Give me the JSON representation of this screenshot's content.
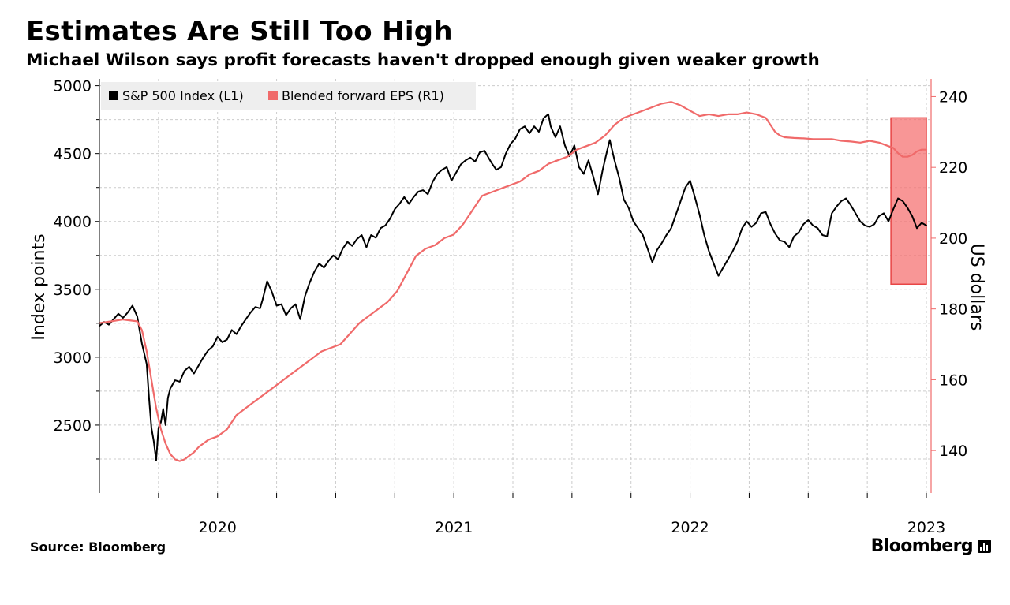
{
  "header": {
    "title": "Estimates Are Still Too High",
    "subtitle": "Michael Wilson says profit forecasts haven't dropped enough given weaker growth"
  },
  "footer": {
    "source": "Source: Bloomberg",
    "brand": "Bloomberg"
  },
  "colors": {
    "sp500": "#000000",
    "eps": "#f06a6a",
    "highlight_fill": "#f57373",
    "highlight_stroke": "#e84545",
    "grid": "#cccccc"
  },
  "chart_data": {
    "type": "line",
    "title": "Estimates Are Still Too High",
    "subtitle": "Michael Wilson says profit forecasts haven't dropped enough given weaker growth",
    "x_axis": {
      "range": [
        2019.5,
        2023.02
      ],
      "ticks": [
        2020,
        2021,
        2022,
        2023
      ],
      "tick_labels": [
        "2020",
        "2021",
        "2022",
        "2023"
      ]
    },
    "left_axis": {
      "label": "Index points",
      "range": [
        2000,
        5050
      ],
      "ticks": [
        2500,
        3000,
        3500,
        4000,
        4500,
        5000
      ],
      "tick_labels": [
        "2500",
        "3000",
        "3500",
        "4000",
        "4500",
        "5000"
      ]
    },
    "right_axis": {
      "label": "US dollars",
      "range": [
        128,
        245
      ],
      "ticks": [
        140,
        160,
        180,
        200,
        220,
        240
      ],
      "tick_labels": [
        "140",
        "160",
        "180",
        "200",
        "220",
        "240"
      ]
    },
    "legend": {
      "placement": "top-left",
      "entries": [
        "S&P 500 Index (L1)",
        "Blended forward EPS (R1)"
      ]
    },
    "grid": true,
    "highlight": {
      "x": [
        2022.85,
        2023.0
      ],
      "y_right": [
        187,
        234
      ]
    },
    "series": [
      {
        "name": "S&P 500 Index (L1)",
        "axis": "left",
        "color": "#000000",
        "points": [
          [
            2019.5,
            3230
          ],
          [
            2019.52,
            3260
          ],
          [
            2019.54,
            3240
          ],
          [
            2019.56,
            3280
          ],
          [
            2019.58,
            3320
          ],
          [
            2019.6,
            3290
          ],
          [
            2019.62,
            3330
          ],
          [
            2019.64,
            3380
          ],
          [
            2019.66,
            3300
          ],
          [
            2019.68,
            3100
          ],
          [
            2019.7,
            2950
          ],
          [
            2019.71,
            2700
          ],
          [
            2019.72,
            2480
          ],
          [
            2019.73,
            2380
          ],
          [
            2019.74,
            2240
          ],
          [
            2019.75,
            2480
          ],
          [
            2019.76,
            2520
          ],
          [
            2019.77,
            2620
          ],
          [
            2019.78,
            2500
          ],
          [
            2019.79,
            2700
          ],
          [
            2019.8,
            2770
          ],
          [
            2019.82,
            2830
          ],
          [
            2019.84,
            2820
          ],
          [
            2019.86,
            2900
          ],
          [
            2019.88,
            2930
          ],
          [
            2019.9,
            2880
          ],
          [
            2019.92,
            2940
          ],
          [
            2019.94,
            3000
          ],
          [
            2019.96,
            3050
          ],
          [
            2019.98,
            3080
          ],
          [
            2020.0,
            3150
          ],
          [
            2020.02,
            3110
          ],
          [
            2020.04,
            3130
          ],
          [
            2020.06,
            3200
          ],
          [
            2020.08,
            3170
          ],
          [
            2020.1,
            3230
          ],
          [
            2020.12,
            3280
          ],
          [
            2020.14,
            3330
          ],
          [
            2020.16,
            3370
          ],
          [
            2020.18,
            3360
          ],
          [
            2020.19,
            3420
          ],
          [
            2020.21,
            3560
          ],
          [
            2020.23,
            3480
          ],
          [
            2020.25,
            3380
          ],
          [
            2020.27,
            3390
          ],
          [
            2020.29,
            3310
          ],
          [
            2020.31,
            3360
          ],
          [
            2020.33,
            3390
          ],
          [
            2020.35,
            3280
          ],
          [
            2020.37,
            3450
          ],
          [
            2020.39,
            3550
          ],
          [
            2020.41,
            3630
          ],
          [
            2020.43,
            3690
          ],
          [
            2020.45,
            3660
          ],
          [
            2020.47,
            3710
          ],
          [
            2020.49,
            3750
          ],
          [
            2020.51,
            3720
          ],
          [
            2020.53,
            3800
          ],
          [
            2020.55,
            3850
          ],
          [
            2020.57,
            3820
          ],
          [
            2020.59,
            3870
          ],
          [
            2020.61,
            3900
          ],
          [
            2020.63,
            3810
          ],
          [
            2020.65,
            3900
          ],
          [
            2020.67,
            3880
          ],
          [
            2020.69,
            3950
          ],
          [
            2020.71,
            3970
          ],
          [
            2020.73,
            4020
          ],
          [
            2020.75,
            4090
          ],
          [
            2020.77,
            4130
          ],
          [
            2020.79,
            4180
          ],
          [
            2020.81,
            4130
          ],
          [
            2020.83,
            4180
          ],
          [
            2020.85,
            4220
          ],
          [
            2020.87,
            4230
          ],
          [
            2020.89,
            4200
          ],
          [
            2020.91,
            4290
          ],
          [
            2020.93,
            4350
          ],
          [
            2020.95,
            4380
          ],
          [
            2020.97,
            4400
          ],
          [
            2020.99,
            4300
          ],
          [
            2021.01,
            4360
          ],
          [
            2021.03,
            4420
          ],
          [
            2021.05,
            4450
          ],
          [
            2021.07,
            4470
          ],
          [
            2021.09,
            4440
          ],
          [
            2021.11,
            4510
          ],
          [
            2021.13,
            4520
          ],
          [
            2021.15,
            4460
          ],
          [
            2021.16,
            4430
          ],
          [
            2021.18,
            4380
          ],
          [
            2021.2,
            4400
          ],
          [
            2021.22,
            4500
          ],
          [
            2021.24,
            4570
          ],
          [
            2021.26,
            4610
          ],
          [
            2021.28,
            4680
          ],
          [
            2021.3,
            4700
          ],
          [
            2021.32,
            4650
          ],
          [
            2021.34,
            4700
          ],
          [
            2021.36,
            4660
          ],
          [
            2021.38,
            4760
          ],
          [
            2021.4,
            4790
          ],
          [
            2021.41,
            4700
          ],
          [
            2021.43,
            4620
          ],
          [
            2021.45,
            4700
          ],
          [
            2021.47,
            4560
          ],
          [
            2021.49,
            4480
          ],
          [
            2021.51,
            4560
          ],
          [
            2021.53,
            4400
          ],
          [
            2021.55,
            4350
          ],
          [
            2021.57,
            4450
          ],
          [
            2021.59,
            4330
          ],
          [
            2021.61,
            4200
          ],
          [
            2021.63,
            4380
          ],
          [
            2021.65,
            4530
          ],
          [
            2021.66,
            4600
          ],
          [
            2021.68,
            4450
          ],
          [
            2021.7,
            4320
          ],
          [
            2021.72,
            4160
          ],
          [
            2021.74,
            4100
          ],
          [
            2021.76,
            4000
          ],
          [
            2021.78,
            3950
          ],
          [
            2021.8,
            3900
          ],
          [
            2021.82,
            3800
          ],
          [
            2021.84,
            3700
          ],
          [
            2021.86,
            3790
          ],
          [
            2021.88,
            3840
          ],
          [
            2021.9,
            3900
          ],
          [
            2021.92,
            3950
          ],
          [
            2021.94,
            4050
          ],
          [
            2021.96,
            4150
          ],
          [
            2021.98,
            4250
          ],
          [
            2022.0,
            4300
          ],
          [
            2022.02,
            4180
          ],
          [
            2022.04,
            4050
          ],
          [
            2022.06,
            3900
          ],
          [
            2022.08,
            3780
          ],
          [
            2022.1,
            3690
          ],
          [
            2022.12,
            3600
          ],
          [
            2022.14,
            3660
          ],
          [
            2022.16,
            3720
          ],
          [
            2022.18,
            3780
          ],
          [
            2022.2,
            3850
          ],
          [
            2022.22,
            3950
          ],
          [
            2022.24,
            4000
          ],
          [
            2022.26,
            3960
          ],
          [
            2022.28,
            3990
          ],
          [
            2022.3,
            4060
          ],
          [
            2022.32,
            4070
          ],
          [
            2022.34,
            3980
          ],
          [
            2022.36,
            3910
          ],
          [
            2022.38,
            3860
          ],
          [
            2022.4,
            3850
          ],
          [
            2022.42,
            3810
          ],
          [
            2022.44,
            3890
          ],
          [
            2022.46,
            3920
          ],
          [
            2022.48,
            3980
          ],
          [
            2022.5,
            4010
          ],
          [
            2022.52,
            3970
          ],
          [
            2022.54,
            3950
          ],
          [
            2022.56,
            3900
          ],
          [
            2022.58,
            3890
          ],
          [
            2022.6,
            4060
          ],
          [
            2022.62,
            4110
          ],
          [
            2022.64,
            4150
          ],
          [
            2022.66,
            4170
          ],
          [
            2022.68,
            4120
          ],
          [
            2022.7,
            4060
          ],
          [
            2022.72,
            4000
          ],
          [
            2022.74,
            3970
          ],
          [
            2022.76,
            3960
          ],
          [
            2022.78,
            3980
          ],
          [
            2022.8,
            4040
          ],
          [
            2022.82,
            4060
          ],
          [
            2022.84,
            4000
          ],
          [
            2022.86,
            4090
          ],
          [
            2022.88,
            4170
          ],
          [
            2022.9,
            4150
          ],
          [
            2022.92,
            4100
          ],
          [
            2022.94,
            4040
          ],
          [
            2022.96,
            3950
          ],
          [
            2022.98,
            3990
          ],
          [
            2023.0,
            3970
          ]
        ]
      },
      {
        "name": "Blended forward EPS (R1)",
        "axis": "right",
        "color": "#f06a6a",
        "points": [
          [
            2019.5,
            176
          ],
          [
            2019.55,
            176.5
          ],
          [
            2019.6,
            177
          ],
          [
            2019.66,
            176.5
          ],
          [
            2019.68,
            174
          ],
          [
            2019.7,
            168
          ],
          [
            2019.72,
            160
          ],
          [
            2019.74,
            152
          ],
          [
            2019.76,
            146
          ],
          [
            2019.78,
            142
          ],
          [
            2019.8,
            139
          ],
          [
            2019.82,
            137.5
          ],
          [
            2019.84,
            137
          ],
          [
            2019.86,
            137.5
          ],
          [
            2019.88,
            138.5
          ],
          [
            2019.9,
            139.5
          ],
          [
            2019.92,
            141
          ],
          [
            2019.94,
            142
          ],
          [
            2019.96,
            143
          ],
          [
            2020.0,
            144
          ],
          [
            2020.04,
            146
          ],
          [
            2020.08,
            150
          ],
          [
            2020.12,
            152
          ],
          [
            2020.16,
            154
          ],
          [
            2020.2,
            156
          ],
          [
            2020.24,
            158
          ],
          [
            2020.28,
            160
          ],
          [
            2020.32,
            162
          ],
          [
            2020.36,
            164
          ],
          [
            2020.4,
            166
          ],
          [
            2020.44,
            168
          ],
          [
            2020.48,
            169
          ],
          [
            2020.52,
            170
          ],
          [
            2020.56,
            173
          ],
          [
            2020.6,
            176
          ],
          [
            2020.64,
            178
          ],
          [
            2020.68,
            180
          ],
          [
            2020.72,
            182
          ],
          [
            2020.76,
            185
          ],
          [
            2020.8,
            190
          ],
          [
            2020.84,
            195
          ],
          [
            2020.88,
            197
          ],
          [
            2020.92,
            198
          ],
          [
            2020.96,
            200
          ],
          [
            2021.0,
            201
          ],
          [
            2021.04,
            204
          ],
          [
            2021.08,
            208
          ],
          [
            2021.12,
            212
          ],
          [
            2021.16,
            213
          ],
          [
            2021.2,
            214
          ],
          [
            2021.24,
            215
          ],
          [
            2021.28,
            216
          ],
          [
            2021.32,
            218
          ],
          [
            2021.36,
            219
          ],
          [
            2021.4,
            221
          ],
          [
            2021.44,
            222
          ],
          [
            2021.48,
            223
          ],
          [
            2021.52,
            225
          ],
          [
            2021.56,
            226
          ],
          [
            2021.6,
            227
          ],
          [
            2021.64,
            229
          ],
          [
            2021.68,
            232
          ],
          [
            2021.72,
            234
          ],
          [
            2021.76,
            235
          ],
          [
            2021.8,
            236
          ],
          [
            2021.84,
            237
          ],
          [
            2021.88,
            238
          ],
          [
            2021.92,
            238.5
          ],
          [
            2021.94,
            238
          ],
          [
            2021.96,
            237.5
          ],
          [
            2022.0,
            236
          ],
          [
            2022.04,
            234.5
          ],
          [
            2022.08,
            235
          ],
          [
            2022.12,
            234.5
          ],
          [
            2022.16,
            235
          ],
          [
            2022.2,
            235
          ],
          [
            2022.24,
            235.5
          ],
          [
            2022.28,
            235
          ],
          [
            2022.32,
            234
          ],
          [
            2022.34,
            232
          ],
          [
            2022.36,
            230
          ],
          [
            2022.38,
            229
          ],
          [
            2022.4,
            228.5
          ],
          [
            2022.44,
            228.3
          ],
          [
            2022.48,
            228.2
          ],
          [
            2022.52,
            228
          ],
          [
            2022.56,
            228
          ],
          [
            2022.6,
            228
          ],
          [
            2022.64,
            227.5
          ],
          [
            2022.68,
            227.3
          ],
          [
            2022.72,
            227
          ],
          [
            2022.76,
            227.5
          ],
          [
            2022.8,
            227
          ],
          [
            2022.84,
            226
          ],
          [
            2022.86,
            225.5
          ],
          [
            2022.88,
            224
          ],
          [
            2022.9,
            223
          ],
          [
            2022.92,
            223
          ],
          [
            2022.94,
            223.5
          ],
          [
            2022.96,
            224.5
          ],
          [
            2022.98,
            225
          ],
          [
            2023.0,
            225
          ]
        ]
      }
    ]
  }
}
